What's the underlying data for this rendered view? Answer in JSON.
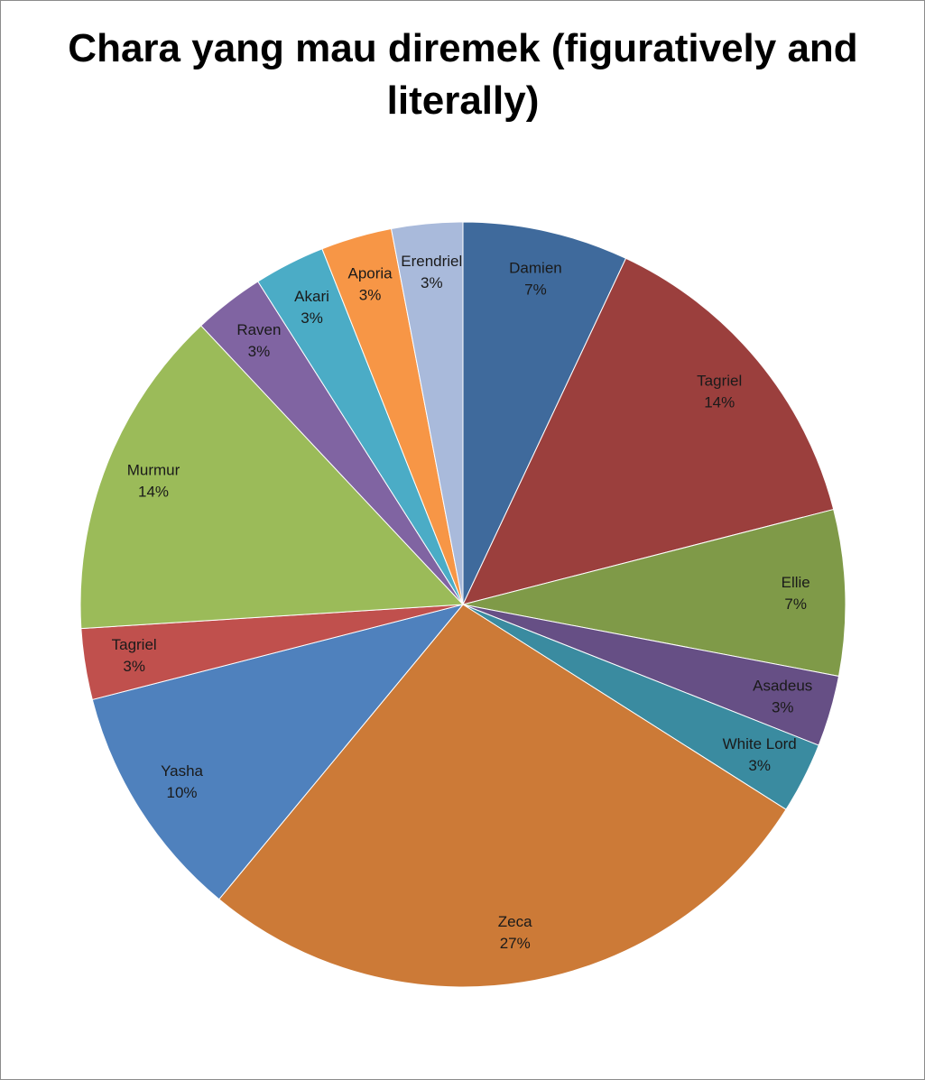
{
  "chart_data": {
    "type": "pie",
    "title": "Chara yang mau diremek (figuratively and literally)",
    "categories": [
      "Damien",
      "Tagriel",
      "Ellie",
      "Asadeus",
      "White Lord",
      "Zeca",
      "Yasha",
      "Tagriel",
      "Murmur",
      "Raven",
      "Akari",
      "Aporia",
      "Erendriel"
    ],
    "values": [
      7,
      14,
      7,
      3,
      3,
      27,
      10,
      3,
      14,
      3,
      3,
      3,
      3
    ],
    "value_labels": [
      "7%",
      "14%",
      "7%",
      "3%",
      "3%",
      "27%",
      "10%",
      "3%",
      "14%",
      "3%",
      "3%",
      "3%",
      "3%"
    ],
    "colors": [
      "#3f6a9c",
      "#9b3f3d",
      "#7f9a48",
      "#664f85",
      "#3a8ba0",
      "#cc7a37",
      "#4f81bd",
      "#c0504d",
      "#9bbb59",
      "#8064a2",
      "#4bacc6",
      "#f79646",
      "#a9badb"
    ]
  }
}
